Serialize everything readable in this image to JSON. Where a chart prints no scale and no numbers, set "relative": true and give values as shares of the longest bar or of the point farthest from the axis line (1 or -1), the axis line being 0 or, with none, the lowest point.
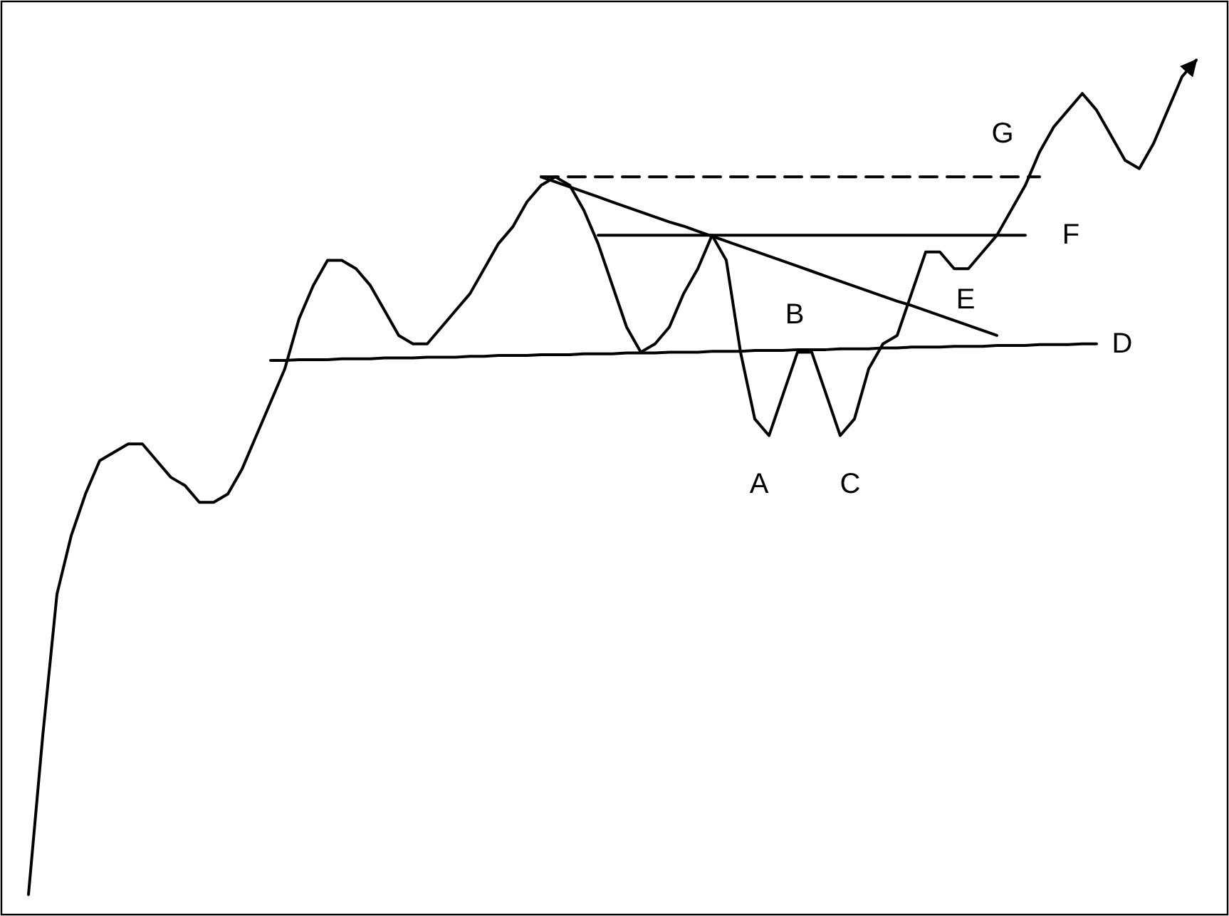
{
  "chart_data": {
    "type": "line",
    "relative": true,
    "categories": [
      null,
      null,
      null,
      null,
      null,
      null,
      null,
      null,
      null,
      null,
      null,
      null,
      null,
      null,
      null,
      null,
      null,
      null,
      null,
      null,
      null,
      null,
      null,
      null,
      null,
      null,
      null,
      null,
      null,
      null,
      null,
      null,
      null,
      null,
      null,
      null,
      null,
      null,
      null,
      null,
      null,
      null,
      null,
      null,
      null,
      null,
      null,
      null,
      null,
      null,
      null,
      null,
      null,
      null,
      null,
      null,
      null,
      null,
      null,
      null,
      null,
      null,
      null,
      null,
      null,
      null,
      null,
      null,
      null,
      null,
      null,
      null,
      null,
      null,
      null,
      null,
      null,
      null,
      null,
      null,
      null,
      null,
      null
    ],
    "series": [
      {
        "color": "#000000",
        "values": [
          0,
          0.19,
          0.36,
          0.43,
          0.48,
          0.52,
          0.53,
          0.54,
          0.54,
          0.52,
          0.5,
          0.49,
          0.47,
          0.47,
          0.48,
          0.51,
          0.55,
          0.59,
          0.63,
          0.69,
          0.73,
          0.76,
          0.76,
          0.75,
          0.73,
          0.7,
          0.67,
          0.66,
          0.66,
          0.68,
          0.7,
          0.72,
          0.75,
          0.78,
          0.8,
          0.83,
          0.85,
          0.86,
          0.85,
          0.82,
          0.78,
          0.73,
          0.68,
          0.65,
          0.66,
          0.68,
          0.72,
          0.75,
          0.79,
          0.76,
          0.65,
          0.57,
          0.55,
          0.6,
          0.65,
          0.65,
          0.6,
          0.55,
          0.57,
          0.63,
          0.66,
          0.67,
          0.72,
          0.77,
          0.77,
          0.75,
          0.75,
          0.77,
          0.79,
          0.82,
          0.85,
          0.89,
          0.92,
          0.94,
          0.96,
          0.94,
          0.91,
          0.88,
          0.87,
          0.9,
          0.94,
          0.98,
          1
        ]
      },
      {
        "name": "D",
        "color": "#000000",
        "values": [
          null,
          null,
          null,
          null,
          null,
          null,
          null,
          null,
          null,
          null,
          null,
          null,
          null,
          null,
          null,
          null,
          null,
          0.64,
          0.64,
          0.641,
          0.641,
          0.641,
          0.642,
          0.642,
          0.642,
          0.643,
          0.643,
          0.643,
          0.644,
          0.644,
          0.644,
          0.645,
          0.645,
          0.646,
          0.646,
          0.646,
          0.647,
          0.647,
          0.647,
          0.648,
          0.648,
          0.648,
          0.649,
          0.649,
          0.649,
          0.65,
          0.65,
          0.65,
          0.651,
          0.651,
          0.651,
          0.652,
          0.652,
          0.652,
          0.653,
          0.653,
          0.653,
          0.654,
          0.654,
          0.654,
          0.655,
          0.655,
          0.656,
          0.656,
          0.656,
          0.657,
          0.657,
          0.657,
          0.658,
          0.658,
          0.658,
          0.659,
          0.659,
          0.659,
          0.66,
          0.66,
          null,
          null,
          null,
          null,
          null,
          null,
          null
        ]
      },
      {
        "name": "F",
        "color": "#000000",
        "values": [
          null,
          null,
          null,
          null,
          null,
          null,
          null,
          null,
          null,
          null,
          null,
          null,
          null,
          null,
          null,
          null,
          null,
          null,
          null,
          null,
          null,
          null,
          null,
          null,
          null,
          null,
          null,
          null,
          null,
          null,
          null,
          null,
          null,
          null,
          null,
          null,
          null,
          null,
          null,
          null,
          0.79,
          0.79,
          0.79,
          0.79,
          0.79,
          0.79,
          0.79,
          0.79,
          0.79,
          0.79,
          0.79,
          0.79,
          0.79,
          0.79,
          0.79,
          0.79,
          0.79,
          0.79,
          0.79,
          0.79,
          0.79,
          0.79,
          0.79,
          0.79,
          0.79,
          0.79,
          0.79,
          0.79,
          0.79,
          0.79,
          0.79,
          null,
          null,
          null,
          null,
          null,
          null,
          null,
          null,
          null,
          null,
          null,
          null
        ]
      },
      {
        "name": "G",
        "color": "#000000",
        "line_style": "dashed",
        "values": [
          null,
          null,
          null,
          null,
          null,
          null,
          null,
          null,
          null,
          null,
          null,
          null,
          null,
          null,
          null,
          null,
          null,
          null,
          null,
          null,
          null,
          null,
          null,
          null,
          null,
          null,
          null,
          null,
          null,
          null,
          null,
          null,
          null,
          null,
          null,
          null,
          0.86,
          0.86,
          0.86,
          0.86,
          0.86,
          0.86,
          0.86,
          0.86,
          0.86,
          0.86,
          0.86,
          0.86,
          0.86,
          0.86,
          0.86,
          0.86,
          0.86,
          0.86,
          0.86,
          0.86,
          0.86,
          0.86,
          0.86,
          0.86,
          0.86,
          0.86,
          0.86,
          0.86,
          0.86,
          0.86,
          0.86,
          0.86,
          0.86,
          0.86,
          0.86,
          0.86,
          null,
          null,
          null,
          null,
          null,
          null,
          null,
          null,
          null,
          null,
          null
        ]
      },
      {
        "name": "E",
        "color": "#000000",
        "values": [
          null,
          null,
          null,
          null,
          null,
          null,
          null,
          null,
          null,
          null,
          null,
          null,
          null,
          null,
          null,
          null,
          null,
          null,
          null,
          null,
          null,
          null,
          null,
          null,
          null,
          null,
          null,
          null,
          null,
          null,
          null,
          null,
          null,
          null,
          null,
          null,
          0.86,
          0.854,
          0.848,
          0.842,
          0.836,
          0.83,
          0.824,
          0.818,
          0.812,
          0.806,
          0.801,
          0.795,
          0.789,
          0.783,
          0.777,
          0.771,
          0.765,
          0.759,
          0.753,
          0.747,
          0.741,
          0.735,
          0.729,
          0.723,
          0.717,
          0.711,
          0.706,
          0.7,
          0.694,
          0.688,
          0.682,
          0.676,
          0.67,
          null,
          null,
          null,
          null,
          null,
          null,
          null,
          null,
          null,
          null,
          null,
          null,
          null,
          null
        ]
      }
    ],
    "annotations": [
      "A",
      "B",
      "C"
    ]
  }
}
